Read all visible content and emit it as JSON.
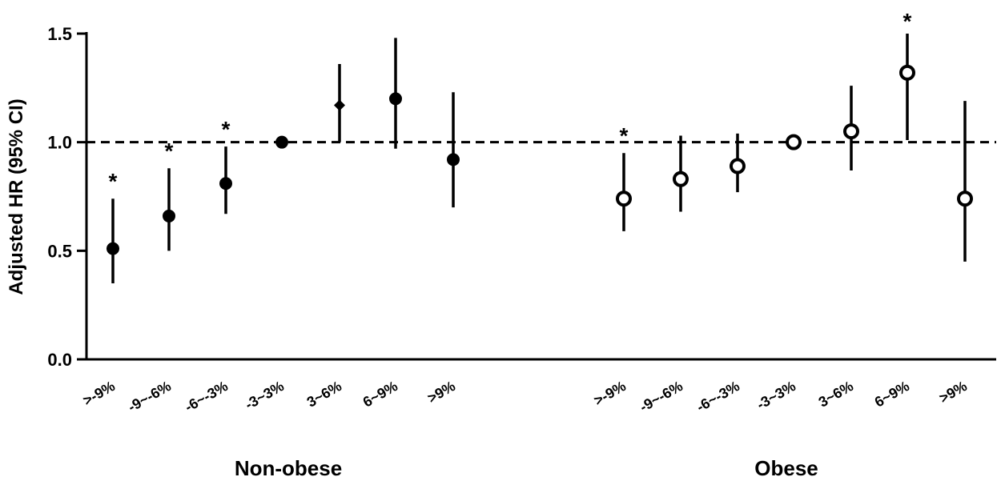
{
  "chart_data": {
    "type": "scatter",
    "subtype": "forest-plot",
    "ylabel": "Adjusted HR (95% CI)",
    "xlabel": "",
    "ylim": [
      0.0,
      1.5
    ],
    "yticks": [
      {
        "value": 0.0,
        "label": "0.0"
      },
      {
        "value": 0.5,
        "label": "0.5"
      },
      {
        "value": 1.0,
        "label": "1.0"
      },
      {
        "value": 1.5,
        "label": "1.5"
      }
    ],
    "reference_line": {
      "value": 1.0,
      "style": "dashed"
    },
    "groups": [
      {
        "label": "Non‐obese",
        "marker": "filled-circle",
        "points": [
          {
            "category": ">-9%",
            "hr": 0.51,
            "lower": 0.35,
            "upper": 0.74,
            "significant": true
          },
          {
            "category": "-9~-6%",
            "hr": 0.66,
            "lower": 0.5,
            "upper": 0.88,
            "significant": true
          },
          {
            "category": "-6~-3%",
            "hr": 0.81,
            "lower": 0.67,
            "upper": 0.98,
            "significant": true
          },
          {
            "category": "-3~3%",
            "hr": 1.0,
            "lower": 1.0,
            "upper": 1.0,
            "significant": false
          },
          {
            "category": "3~6%",
            "hr": 1.17,
            "lower": 1.0,
            "upper": 1.36,
            "significant": false,
            "marker": "filled-diamond"
          },
          {
            "category": "6~9%",
            "hr": 1.2,
            "lower": 0.97,
            "upper": 1.48,
            "significant": false
          },
          {
            "category": ">9%",
            "hr": 0.92,
            "lower": 0.7,
            "upper": 1.23,
            "significant": false
          }
        ]
      },
      {
        "label": "Obese",
        "marker": "open-circle",
        "points": [
          {
            "category": ">-9%",
            "hr": 0.74,
            "lower": 0.59,
            "upper": 0.95,
            "significant": true
          },
          {
            "category": "-9~-6%",
            "hr": 0.83,
            "lower": 0.68,
            "upper": 1.03,
            "significant": false
          },
          {
            "category": "-6~-3%",
            "hr": 0.89,
            "lower": 0.77,
            "upper": 1.04,
            "significant": false
          },
          {
            "category": "-3~3%",
            "hr": 1.0,
            "lower": 1.0,
            "upper": 1.0,
            "significant": false
          },
          {
            "category": "3~6%",
            "hr": 1.05,
            "lower": 0.87,
            "upper": 1.26,
            "significant": false
          },
          {
            "category": "6~9%",
            "hr": 1.32,
            "lower": 1.01,
            "upper": 1.5,
            "significant": true
          },
          {
            "category": ">9%",
            "hr": 0.74,
            "lower": 0.45,
            "upper": 1.19,
            "significant": false
          }
        ]
      }
    ],
    "significance_marker": "*",
    "grid": false,
    "legend": "none"
  }
}
